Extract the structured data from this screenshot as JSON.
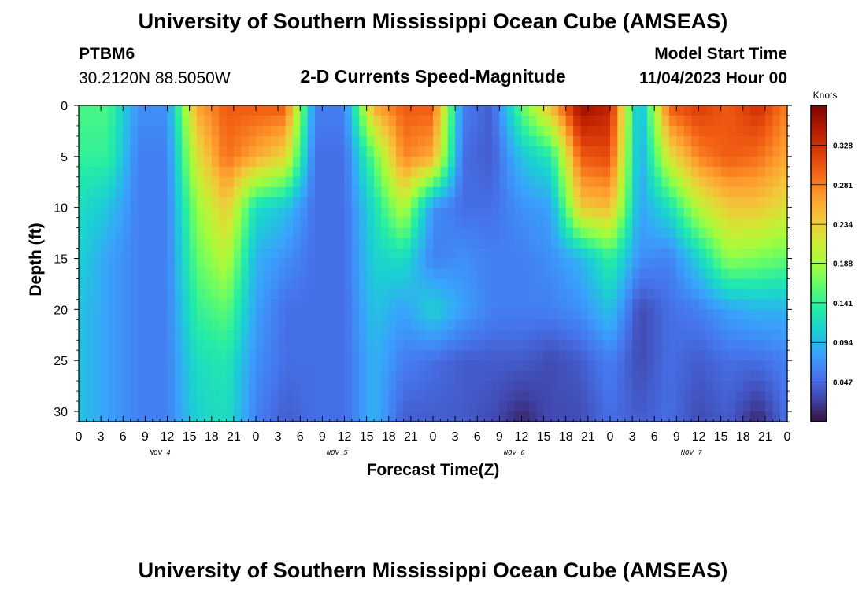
{
  "title": "University of Southern Mississippi Ocean Cube (AMSEAS)",
  "footer_title": "University of Southern Mississippi Ocean Cube (AMSEAS)",
  "station": {
    "id": "PTBM6",
    "coords": "30.2120N  88.5050W"
  },
  "model_start": {
    "label": "Model Start Time",
    "value": "11/04/2023 Hour 00"
  },
  "chart_data": {
    "type": "heatmap",
    "title": "2-D Currents Speed-Magnitude",
    "xlabel": "Forecast Time(Z)",
    "ylabel": "Depth (ft)",
    "x_range_hours": [
      0,
      96
    ],
    "y_range_ft": [
      0,
      31
    ],
    "y_inverted": true,
    "x_tick_labels": [
      "0",
      "3",
      "6",
      "9",
      "12",
      "15",
      "18",
      "21",
      "0",
      "3",
      "6",
      "9",
      "12",
      "15",
      "18",
      "21",
      "0",
      "3",
      "6",
      "9",
      "12",
      "15",
      "18",
      "21",
      "0",
      "3",
      "6",
      "9",
      "12",
      "15",
      "18",
      "21",
      "0"
    ],
    "y_ticks": [
      0,
      5,
      10,
      15,
      20,
      25,
      30
    ],
    "day_labels": [
      {
        "label": "NOV 4",
        "hour": 11
      },
      {
        "label": "NOV 5",
        "hour": 35
      },
      {
        "label": "NOV 6",
        "hour": 59
      },
      {
        "label": "NOV 7",
        "hour": 83
      }
    ],
    "colorbar": {
      "unit": "Knots",
      "min": 0.0,
      "max": 0.375,
      "ticks": [
        "0.047",
        "0.094",
        "0.141",
        "0.188",
        "0.234",
        "0.281",
        "0.328"
      ],
      "colormap": [
        "#30123b",
        "#4145ab",
        "#4675ed",
        "#39a2fc",
        "#1bcfd4",
        "#24eca6",
        "#61fc6c",
        "#a4fc3b",
        "#d1e834",
        "#f3c63a",
        "#fe9b2d",
        "#f36315",
        "#d93806",
        "#b11901",
        "#7a0402"
      ]
    },
    "depths_ft": [
      0,
      5,
      10,
      15,
      20,
      25,
      31
    ],
    "speed_knots_by_depth": [
      [
        0.15,
        0.15,
        0.07,
        0.07,
        0.26,
        0.3,
        0.3,
        0.3,
        0.06,
        0.06,
        0.26,
        0.3,
        0.3,
        0.06,
        0.04,
        0.16,
        0.25,
        0.36,
        0.34,
        0.08,
        0.3,
        0.32,
        0.3,
        0.33,
        0.28
      ],
      [
        0.14,
        0.14,
        0.06,
        0.06,
        0.22,
        0.29,
        0.26,
        0.23,
        0.05,
        0.05,
        0.16,
        0.28,
        0.26,
        0.05,
        0.04,
        0.1,
        0.13,
        0.3,
        0.31,
        0.08,
        0.22,
        0.28,
        0.3,
        0.29,
        0.26
      ],
      [
        0.12,
        0.1,
        0.06,
        0.06,
        0.18,
        0.24,
        0.12,
        0.1,
        0.05,
        0.05,
        0.12,
        0.2,
        0.07,
        0.05,
        0.05,
        0.07,
        0.08,
        0.24,
        0.25,
        0.08,
        0.12,
        0.2,
        0.24,
        0.24,
        0.22
      ],
      [
        0.11,
        0.08,
        0.06,
        0.06,
        0.16,
        0.2,
        0.09,
        0.07,
        0.05,
        0.05,
        0.11,
        0.12,
        0.06,
        0.07,
        0.06,
        0.06,
        0.07,
        0.09,
        0.14,
        0.07,
        0.06,
        0.11,
        0.18,
        0.17,
        0.16
      ],
      [
        0.1,
        0.08,
        0.06,
        0.06,
        0.14,
        0.16,
        0.08,
        0.05,
        0.05,
        0.05,
        0.1,
        0.08,
        0.11,
        0.08,
        0.06,
        0.06,
        0.06,
        0.07,
        0.1,
        0.03,
        0.05,
        0.06,
        0.08,
        0.09,
        0.09
      ],
      [
        0.1,
        0.08,
        0.06,
        0.06,
        0.12,
        0.13,
        0.07,
        0.05,
        0.05,
        0.05,
        0.09,
        0.06,
        0.05,
        0.04,
        0.04,
        0.04,
        0.03,
        0.04,
        0.06,
        0.03,
        0.05,
        0.04,
        0.05,
        0.05,
        0.06
      ],
      [
        0.1,
        0.08,
        0.06,
        0.06,
        0.11,
        0.12,
        0.06,
        0.04,
        0.05,
        0.05,
        0.09,
        0.04,
        0.04,
        0.04,
        0.03,
        0.01,
        0.03,
        0.03,
        0.05,
        0.04,
        0.05,
        0.03,
        0.04,
        0.01,
        0.05
      ]
    ]
  }
}
